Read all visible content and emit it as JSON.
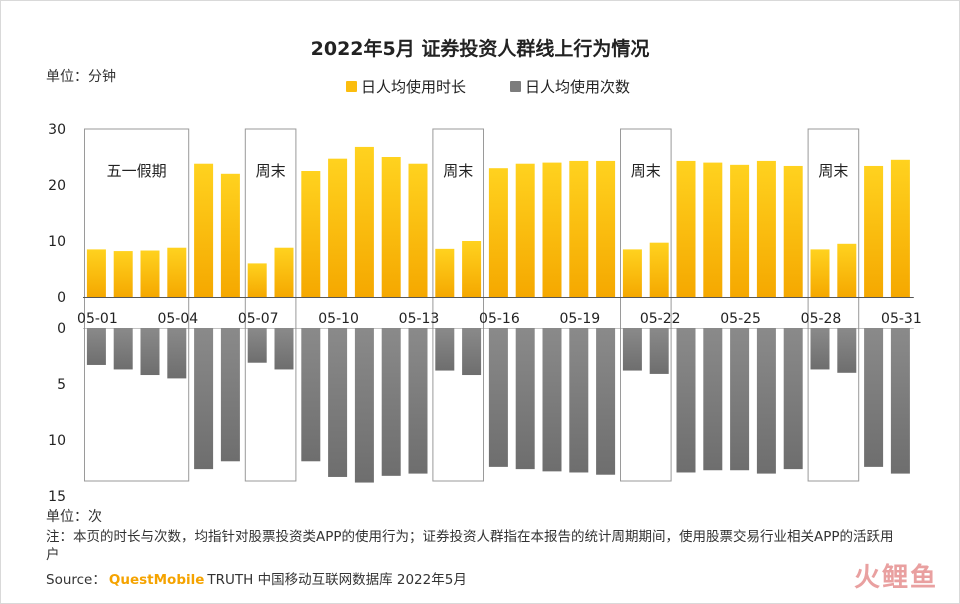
{
  "title": "2022年5月 证券投资人群线上行为情况",
  "unit_top": "单位：分钟",
  "unit_bottom": "单位：次",
  "legend": {
    "duration": "日人均使用时长",
    "times": "日人均使用次数"
  },
  "note": "注：本页的时长与次数，均指针对股票投资类APP的使用行为；证券投资人群指在本报告的统计周期期间，使用股票交易行业相关APP的活跃用户",
  "source": {
    "prefix": "Source：",
    "brand": "QuestMobile",
    "rest": "TRUTH 中国移动互联网数据库 2022年5月"
  },
  "watermark": "火鲤鱼",
  "colors": {
    "duration_top": "#ffd21f",
    "duration_bottom": "#f5a800",
    "times_top": "#8a8a8a",
    "times_bottom": "#6e6e6e",
    "period_box": "#9a9a9a"
  },
  "chart_data": {
    "type": "bar",
    "categories": [
      "05-01",
      "05-02",
      "05-03",
      "05-04",
      "05-05",
      "05-06",
      "05-07",
      "05-08",
      "05-09",
      "05-10",
      "05-11",
      "05-12",
      "05-13",
      "05-14",
      "05-15",
      "05-16",
      "05-17",
      "05-18",
      "05-19",
      "05-20",
      "05-21",
      "05-22",
      "05-23",
      "05-24",
      "05-25",
      "05-26",
      "05-27",
      "05-28",
      "05-29",
      "05-30",
      "05-31"
    ],
    "x_tick_labels": [
      "05-01",
      "05-04",
      "05-07",
      "05-10",
      "05-13",
      "05-16",
      "05-19",
      "05-22",
      "05-25",
      "05-28",
      "05-31"
    ],
    "series": [
      {
        "name": "日人均使用时长",
        "unit": "分钟",
        "values": [
          8.5,
          8.2,
          8.3,
          8.8,
          23.8,
          22.0,
          6.0,
          8.8,
          22.5,
          24.7,
          26.8,
          25.0,
          23.8,
          8.6,
          10.0,
          23.0,
          23.8,
          24.0,
          24.3,
          24.3,
          8.5,
          9.7,
          24.3,
          24.0,
          23.6,
          24.3,
          23.4,
          8.5,
          9.5,
          23.4,
          24.5
        ]
      },
      {
        "name": "日人均使用次数",
        "unit": "次",
        "values": [
          3.3,
          3.7,
          4.2,
          4.5,
          12.6,
          11.9,
          3.1,
          3.7,
          11.9,
          13.3,
          13.8,
          13.2,
          13.0,
          3.8,
          4.2,
          12.4,
          12.6,
          12.8,
          12.9,
          13.1,
          3.8,
          4.1,
          12.9,
          12.7,
          12.7,
          13.0,
          12.6,
          3.7,
          4.0,
          12.4,
          13.0
        ]
      }
    ],
    "top_axis": {
      "ylim": [
        0,
        30
      ],
      "ticks": [
        0,
        10,
        20,
        30
      ]
    },
    "bottom_axis": {
      "ylim": [
        0,
        15
      ],
      "ticks": [
        0,
        5,
        10,
        15
      ],
      "inverted": true
    },
    "period_boxes": [
      {
        "label": "五一假期",
        "start": "05-01",
        "end": "05-04"
      },
      {
        "label": "周末",
        "start": "05-07",
        "end": "05-08"
      },
      {
        "label": "周末",
        "start": "05-14",
        "end": "05-15"
      },
      {
        "label": "周末",
        "start": "05-21",
        "end": "05-22"
      },
      {
        "label": "周末",
        "start": "05-28",
        "end": "05-29"
      }
    ]
  }
}
